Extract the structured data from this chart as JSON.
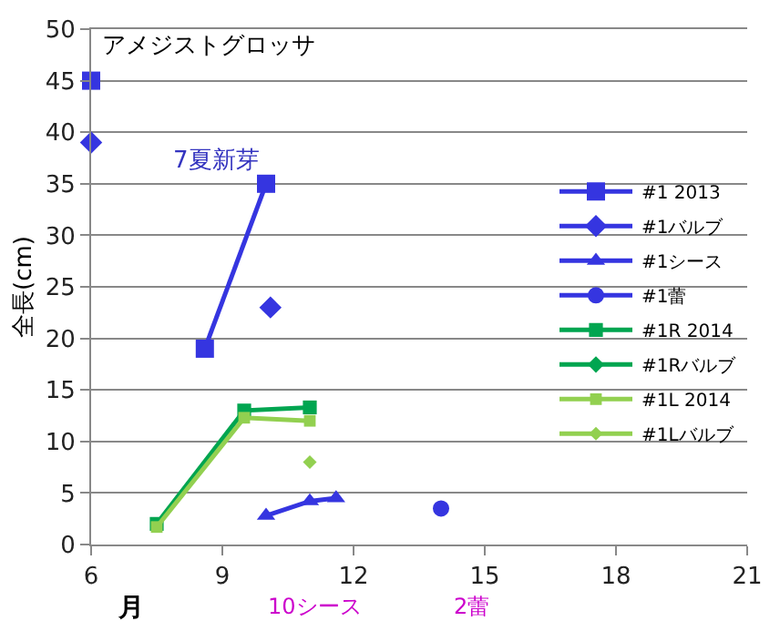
{
  "chart_data": {
    "type": "line",
    "xlabel": "月",
    "ylabel": "全長(cm)",
    "annotations": [
      "アメジストグロッサ",
      "7夏新芽",
      "10シース",
      "2蕾"
    ],
    "xlim": [
      6,
      21
    ],
    "xticks": [
      6,
      9,
      12,
      15,
      18,
      21
    ],
    "ylim": [
      0,
      50
    ],
    "yticks": [
      0,
      5,
      10,
      15,
      20,
      25,
      30,
      35,
      40,
      45,
      50
    ],
    "grid": "y",
    "legend": "right",
    "line_style": "solid",
    "series": [
      {
        "name": "#1 2013",
        "color": "#3535e0",
        "marker": "square",
        "x": [
          6,
          null,
          8.6,
          10
        ],
        "values": [
          45,
          null,
          19,
          35
        ]
      },
      {
        "name": "#1バルブ",
        "color": "#3535e0",
        "marker": "diamond",
        "x": [
          6,
          null,
          10.1
        ],
        "values": [
          39,
          null,
          23
        ]
      },
      {
        "name": "#1シース",
        "color": "#3535e0",
        "marker": "triangle",
        "x": [
          10,
          11,
          11.6
        ],
        "values": [
          2.8,
          4.2,
          4.5
        ]
      },
      {
        "name": "#1蕾",
        "color": "#3535e0",
        "marker": "circle",
        "x": [
          14
        ],
        "values": [
          3.5
        ]
      },
      {
        "name": "#1R 2014",
        "color": "#00a550",
        "marker": "square",
        "x": [
          7.5,
          9.5,
          11
        ],
        "values": [
          2,
          13,
          13.3
        ]
      },
      {
        "name": "#1Rバルブ",
        "color": "#00a550",
        "marker": "diamond"
      },
      {
        "name": "#1L 2014",
        "color": "#92d050",
        "marker": "square",
        "x": [
          7.5,
          9.5,
          11
        ],
        "values": [
          1.7,
          12.3,
          12
        ]
      },
      {
        "name": "#1Lバルブ",
        "color": "#92d050",
        "marker": "diamond",
        "x": [
          11
        ],
        "values": [
          8
        ]
      }
    ]
  }
}
